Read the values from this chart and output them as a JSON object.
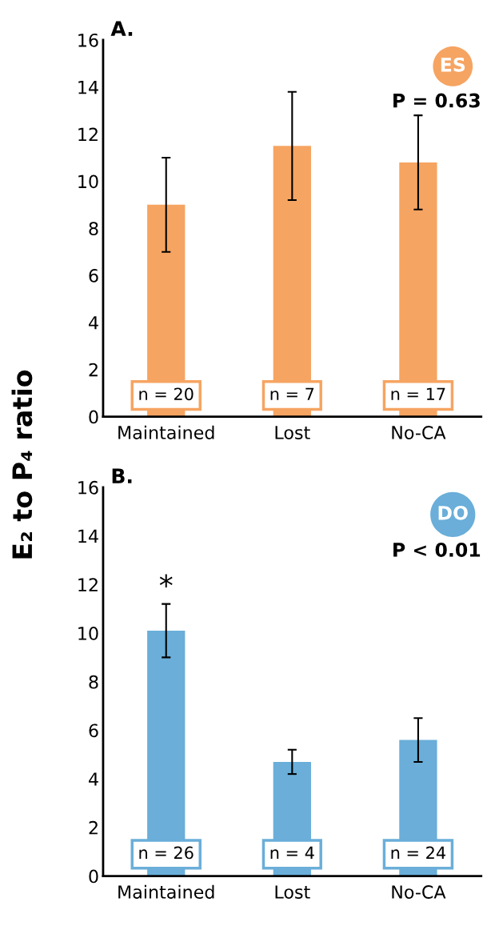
{
  "chart_data": [
    {
      "type": "bar",
      "title": "A.",
      "ylabel": "E₂ to P₄ ratio",
      "categories": [
        "Maintained",
        "Lost",
        "No-CA"
      ],
      "series": [
        {
          "color": "#f6a462",
          "values": [
            9.0,
            11.5,
            10.8
          ],
          "errors": [
            [
              7.0,
              11.0
            ],
            [
              9.2,
              13.8
            ],
            [
              8.8,
              12.8
            ]
          ]
        }
      ],
      "ylim": [
        0,
        16
      ],
      "yticks": [
        0,
        2,
        4,
        6,
        8,
        10,
        12,
        14,
        16
      ],
      "grid": false,
      "legend": false,
      "annotations": [
        "ES",
        "P = 0.63",
        "n = 20",
        "n = 7",
        "n = 17"
      ]
    },
    {
      "type": "bar",
      "title": "B.",
      "categories": [
        "Maintained",
        "Lost",
        "No-CA"
      ],
      "series": [
        {
          "color": "#6aaed9",
          "values": [
            10.1,
            4.7,
            5.6
          ],
          "errors": [
            [
              9.0,
              11.2
            ],
            [
              4.2,
              5.2
            ],
            [
              4.7,
              6.5
            ]
          ]
        }
      ],
      "ylim": [
        0,
        16
      ],
      "yticks": [
        0,
        2,
        4,
        6,
        8,
        10,
        12,
        14,
        16
      ],
      "grid": false,
      "legend": false,
      "annotations": [
        "DO",
        "P < 0.01",
        "*",
        "n = 26",
        "n = 4",
        "n = 24"
      ]
    }
  ]
}
